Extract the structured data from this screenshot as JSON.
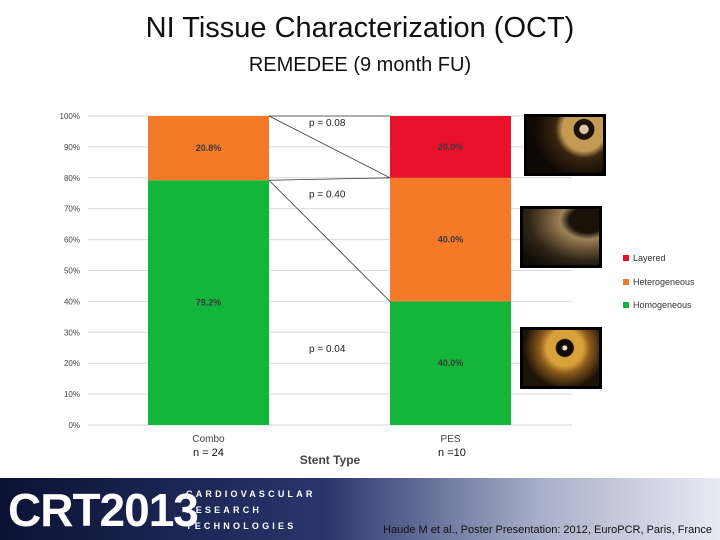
{
  "header": {
    "title": "NI Tissue Characterization (OCT)",
    "subtitle": "REMEDEE (9 month FU)"
  },
  "chart_data": {
    "type": "bar",
    "stacked": true,
    "categories": [
      "Combo",
      "PES"
    ],
    "series": [
      {
        "name": "Homogeneous",
        "color": "#13b53a",
        "values": [
          79.2,
          40.0
        ],
        "labels": [
          "79.2%",
          "40.0%"
        ]
      },
      {
        "name": "Heterogeneous",
        "color": "#f47a2a",
        "values": [
          20.8,
          40.0
        ],
        "labels": [
          "20.8%",
          "40.0%"
        ]
      },
      {
        "name": "Layered",
        "color": "#e8102a",
        "values": [
          0,
          20.0
        ],
        "labels": [
          "",
          "20.0%"
        ]
      }
    ],
    "xlabel": "Stent Type",
    "ylabel": "",
    "ylim": [
      0,
      100
    ],
    "yticks": [
      "0%",
      "10%",
      "20%",
      "30%",
      "40%",
      "50%",
      "60%",
      "70%",
      "80%",
      "90%",
      "100%"
    ],
    "legend_order": [
      "Layered",
      "Heterogeneous",
      "Homogeneous"
    ],
    "legend_position": "right",
    "pvalues": [
      {
        "text": "p = 0.08",
        "at": 98
      },
      {
        "text": "p = 0.40",
        "at": 75
      },
      {
        "text": "p = 0.04",
        "at": 25
      }
    ],
    "sample_sizes": [
      "n = 24",
      "n =10"
    ]
  },
  "oct_images": [
    {
      "name": "layered-oct-image",
      "border": "#e8102a"
    },
    {
      "name": "heterogeneous-oct-image",
      "border": "#f47a2a"
    },
    {
      "name": "homogeneous-oct-image",
      "border": "#3aa63a"
    }
  ],
  "footer": {
    "logo": "CRT2013",
    "logo_lines": [
      "CARDIOVASCULAR",
      "RESEARCH",
      "TECHNOLOGIES"
    ],
    "citation": "Haude M et al., Poster Presentation: 2012, EuroPCR, Paris, France"
  }
}
